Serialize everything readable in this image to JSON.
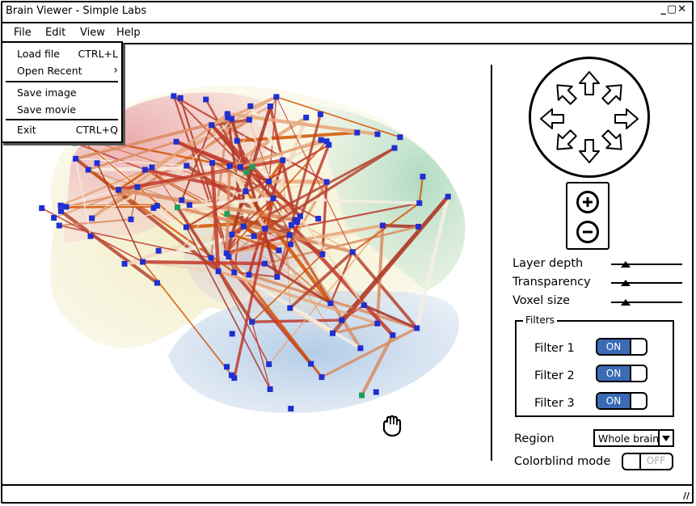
{
  "window": {
    "title": "Brain Viewer - Simple Labs",
    "controls": "_▢✕"
  },
  "menu": [
    {
      "label": "File"
    },
    {
      "label": "Edit"
    },
    {
      "label": "View"
    },
    {
      "label": "Help"
    }
  ],
  "file_menu": {
    "load": {
      "label": "Load file",
      "shortcut": "CTRL+L"
    },
    "recent": {
      "label": "Open Recent",
      "arrow": "›"
    },
    "save_image": {
      "label": "Save image"
    },
    "save_movie": {
      "label": "Save movie"
    },
    "exit": {
      "label": "Exit",
      "shortcut": "CTRL+Q"
    }
  },
  "controls": {
    "sliders": [
      {
        "label": "Layer depth",
        "value": 0.2
      },
      {
        "label": "Transparency",
        "value": 0.2
      },
      {
        "label": "Voxel size",
        "value": 0.2
      }
    ],
    "filters": {
      "legend": "Filters",
      "items": [
        {
          "label": "Filter 1",
          "state": "ON"
        },
        {
          "label": "Filter 2",
          "state": "ON"
        },
        {
          "label": "Filter 3",
          "state": "ON"
        }
      ]
    },
    "region": {
      "label": "Region",
      "value": "Whole brain"
    },
    "colorblind": {
      "label": "Colorblind mode",
      "state": "OFF"
    }
  },
  "icons": [
    "arrow-up-icon",
    "arrow-down-icon",
    "arrow-left-icon",
    "arrow-right-icon",
    "zoom-in-icon",
    "zoom-out-icon",
    "hand-cursor-icon"
  ]
}
